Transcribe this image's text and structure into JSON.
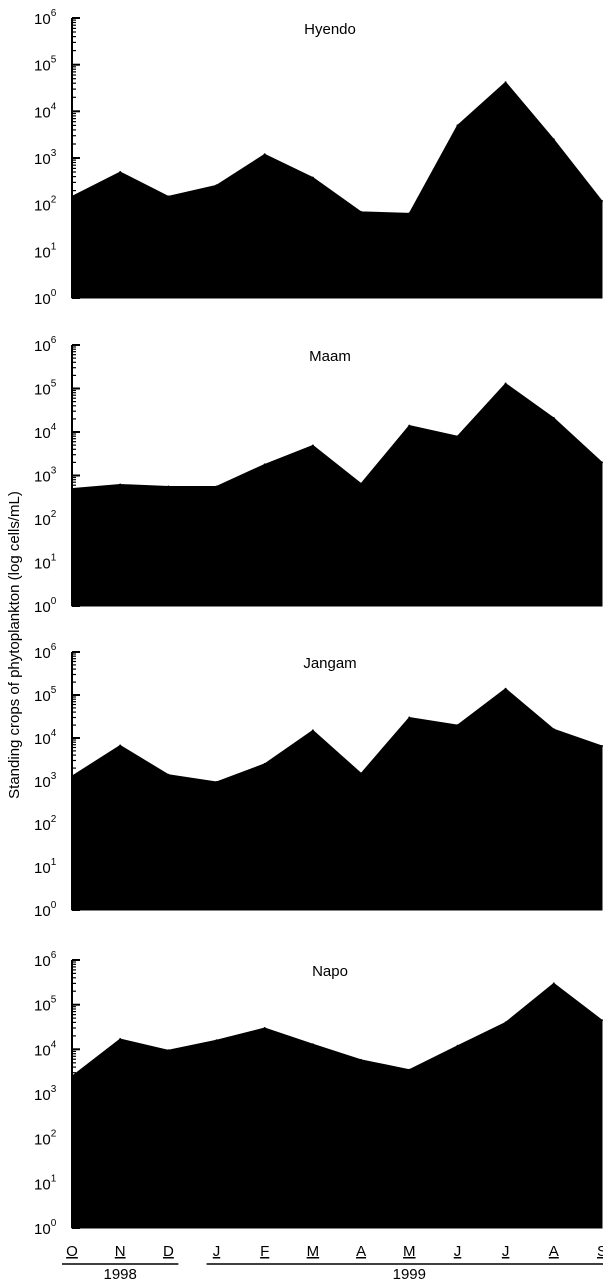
{
  "ylabel": "Standing crops of phytoplankton (log cells/mL)",
  "months": [
    "O",
    "N",
    "D",
    "J",
    "F",
    "M",
    "A",
    "M",
    "J",
    "J",
    "A",
    "S"
  ],
  "years": [
    {
      "label": "1998",
      "from": "O",
      "to": "D"
    },
    {
      "label": "1999",
      "from": "J",
      "to": "S"
    }
  ],
  "ytick_labels": [
    "10^0",
    "10^1",
    "10^2",
    "10^3",
    "10^4",
    "10^5",
    "10^6"
  ],
  "chart_data": [
    {
      "type": "area",
      "title": "Hyendo",
      "y_scale": "log",
      "ylim": [
        1,
        1000000
      ],
      "x": [
        "Oct 1998",
        "Nov 1998",
        "Dec 1998",
        "Jan 1999",
        "Feb 1999",
        "Mar 1999",
        "Apr 1999",
        "May 1999",
        "Jun 1999",
        "Jul 1999",
        "Aug 1999",
        "Sep 1999"
      ],
      "values": [
        150,
        500,
        150,
        260,
        1200,
        380,
        70,
        65,
        5000,
        42000,
        2500,
        120
      ]
    },
    {
      "type": "area",
      "title": "Maam",
      "y_scale": "log",
      "ylim": [
        1,
        1000000
      ],
      "x": [
        "Oct 1998",
        "Nov 1998",
        "Dec 1998",
        "Jan 1999",
        "Feb 1999",
        "Mar 1999",
        "Apr 1999",
        "May 1999",
        "Jun 1999",
        "Jul 1999",
        "Aug 1999",
        "Sep 1999"
      ],
      "values": [
        500,
        620,
        560,
        560,
        1800,
        4900,
        650,
        14000,
        8000,
        130000,
        21000,
        2000
      ]
    },
    {
      "type": "area",
      "title": "Jangam",
      "y_scale": "log",
      "ylim": [
        1,
        1000000
      ],
      "x": [
        "Oct 1998",
        "Nov 1998",
        "Dec 1998",
        "Jan 1999",
        "Feb 1999",
        "Mar 1999",
        "Apr 1999",
        "May 1999",
        "Jun 1999",
        "Jul 1999",
        "Aug 1999",
        "Sep 1999"
      ],
      "values": [
        1300,
        6700,
        1400,
        950,
        2500,
        15000,
        1500,
        30000,
        20000,
        140000,
        16000,
        6500
      ]
    },
    {
      "type": "area",
      "title": "Napo",
      "y_scale": "log",
      "ylim": [
        1,
        1000000
      ],
      "x": [
        "Oct 1998",
        "Nov 1998",
        "Dec 1998",
        "Jan 1999",
        "Feb 1999",
        "Mar 1999",
        "Apr 1999",
        "May 1999",
        "Jun 1999",
        "Jul 1999",
        "Aug 1999",
        "Sep 1999"
      ],
      "values": [
        2500,
        17000,
        9500,
        16000,
        30000,
        13000,
        5800,
        3500,
        12000,
        40000,
        300000,
        45000
      ]
    }
  ],
  "colors": {
    "fill": "#000000",
    "background": "#ffffff"
  }
}
